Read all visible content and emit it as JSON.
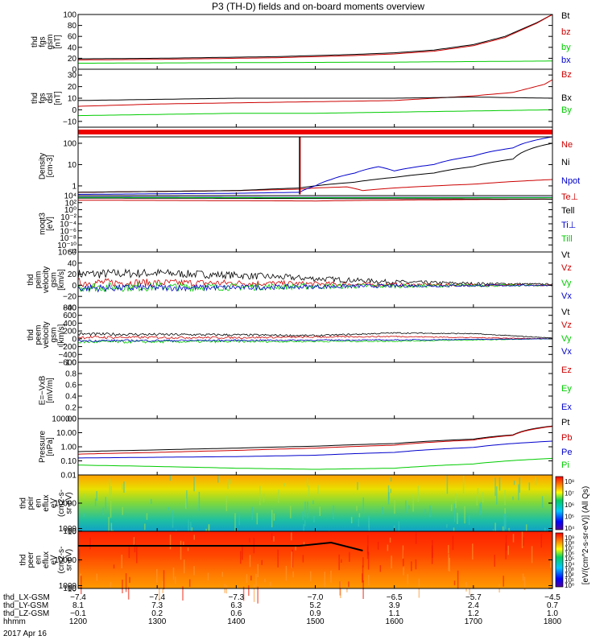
{
  "title": "P3 (TH-D) fields and on-board moments overview",
  "date_label": "2017 Apr 16",
  "chart_data": [
    {
      "id": "fgs-gsm",
      "type": "line",
      "ylabel": [
        "thd",
        "fgs",
        "gsm",
        "[nT]"
      ],
      "ylim": [
        0,
        100
      ],
      "yticks": [
        "100",
        "80",
        "60",
        "40",
        "20",
        "0"
      ],
      "ytick_values": [
        100,
        80,
        60,
        40,
        20,
        0
      ],
      "series": [
        {
          "name": "Bt",
          "color": "#000000",
          "x": [
            1200,
            1300,
            1400,
            1450,
            1500,
            1550,
            1600,
            1650,
            1700,
            1740,
            1780,
            1800
          ],
          "y": [
            19,
            20,
            22,
            23,
            25,
            27,
            30,
            35,
            45,
            60,
            85,
            100
          ]
        },
        {
          "name": "bz",
          "color": "#cc0000",
          "x": [
            1200,
            1300,
            1400,
            1450,
            1500,
            1550,
            1600,
            1650,
            1700,
            1740,
            1780,
            1800
          ],
          "y": [
            17,
            18,
            20,
            21,
            23,
            25,
            28,
            33,
            43,
            58,
            84,
            100
          ]
        },
        {
          "name": "by",
          "color": "#00cc00",
          "x": [
            1200,
            1400,
            1600,
            1700,
            1800
          ],
          "y": [
            11,
            12,
            13,
            14,
            15
          ]
        },
        {
          "name": "bx",
          "color": "#0000cc",
          "x": [
            1200,
            1400,
            1600,
            1700,
            1800
          ],
          "y": [
            0,
            0,
            0,
            -1,
            -2
          ]
        }
      ]
    },
    {
      "id": "fgs-dsl",
      "type": "line",
      "ylabel": [
        "thd",
        "fgs",
        "dsl",
        "[nT]"
      ],
      "ylim": [
        -15,
        35
      ],
      "yticks": [
        "30",
        "20",
        "10",
        "0",
        "−10"
      ],
      "ytick_values": [
        30,
        20,
        10,
        0,
        -10
      ],
      "series": [
        {
          "name": "Bz",
          "color": "#cc0000",
          "x": [
            1200,
            1300,
            1400,
            1500,
            1600,
            1650,
            1700,
            1750,
            1790,
            1800
          ],
          "y": [
            3,
            5,
            6,
            7,
            8,
            10,
            12,
            15,
            22,
            26
          ]
        },
        {
          "name": "Bx",
          "color": "#000000",
          "x": [
            1200,
            1300,
            1400,
            1500,
            1600,
            1700,
            1800
          ],
          "y": [
            8,
            9,
            10,
            10,
            10,
            11,
            10
          ]
        },
        {
          "name": "By",
          "color": "#00cc00",
          "x": [
            1200,
            1300,
            1400,
            1500,
            1600,
            1700,
            1800
          ],
          "y": [
            -5,
            -4,
            -3,
            -3,
            -2,
            -1,
            0
          ]
        }
      ]
    },
    {
      "id": "flag-bar",
      "type": "bar",
      "color": "#ee0000"
    },
    {
      "id": "density",
      "type": "line",
      "scale": "log",
      "ylabel": [
        "Density",
        "[cm-3]"
      ],
      "ylim": [
        0.35,
        200
      ],
      "yticks": [
        "100",
        "10",
        "1"
      ],
      "ytick_values": [
        100,
        10,
        1
      ],
      "series": [
        {
          "name": "Ne",
          "color": "#cc0000",
          "x": [
            1200,
            1300,
            1400,
            1480,
            1500,
            1540,
            1560,
            1600,
            1700,
            1800
          ],
          "y": [
            0.5,
            0.55,
            0.6,
            0.7,
            0.8,
            0.9,
            0.6,
            0.8,
            1.2,
            2
          ]
        },
        {
          "name": "Ni",
          "color": "#000000",
          "x": [
            1200,
            1300,
            1400,
            1480,
            1500,
            1550,
            1600,
            1650,
            1700,
            1750,
            1800
          ],
          "y": [
            0.5,
            0.55,
            0.6,
            0.8,
            1.0,
            1.5,
            2.5,
            4,
            8,
            18,
            100
          ]
        },
        {
          "name": "Npot",
          "color": "#0000cc",
          "x": [
            1200,
            1400,
            1480,
            1500,
            1520,
            1550,
            1580,
            1600,
            1650,
            1700,
            1750,
            1800
          ],
          "y": [
            0.4,
            0.45,
            0.5,
            1.0,
            2,
            4,
            8,
            5,
            10,
            25,
            60,
            200
          ]
        }
      ],
      "spike": {
        "x": 1480,
        "y_from": 0.4,
        "y_to": 200
      }
    },
    {
      "id": "temperature",
      "type": "line",
      "scale": "log",
      "ylabel": [
        "moqt3",
        "[eV]"
      ],
      "ylim": [
        1e-12,
        10000.0
      ],
      "yticks": [
        "10⁴",
        "10²",
        "10⁰",
        "10⁻²",
        "10⁻⁴",
        "10⁻⁶",
        "10⁻⁸",
        "10⁻¹⁰",
        "10⁻¹²"
      ],
      "ytick_values": [
        10000.0,
        100.0,
        1,
        0.01,
        0.0001,
        1e-06,
        1e-08,
        1e-10,
        1e-12
      ],
      "series": [
        {
          "name": "Te⊥",
          "color": "#cc0000",
          "x": [
            1200,
            1500,
            1800
          ],
          "y": [
            500,
            300,
            1000
          ]
        },
        {
          "name": "Tell",
          "color": "#000000",
          "x": [
            1200,
            1500,
            1800
          ],
          "y": [
            2000,
            1500,
            1000
          ]
        },
        {
          "name": "Ti⊥",
          "color": "#0000cc",
          "x": [
            1200,
            1500,
            1800
          ],
          "y": [
            4000,
            3000,
            3000
          ]
        },
        {
          "name": "Till",
          "color": "#00cc00",
          "x": [
            1200,
            1500,
            1800
          ],
          "y": [
            3000,
            2500,
            2500
          ]
        }
      ]
    },
    {
      "id": "peim-velocity",
      "type": "line",
      "ylabel": [
        "thd",
        "peim",
        "velocity",
        "gsm",
        "[km/s]"
      ],
      "ylim": [
        -40,
        60
      ],
      "yticks": [
        "60",
        "40",
        "20",
        "0",
        "−20",
        "−40"
      ],
      "ytick_values": [
        60,
        40,
        20,
        0,
        -20,
        -40
      ],
      "series": [
        {
          "name": "Vt",
          "color": "#000000",
          "x": [
            1200,
            1300,
            1400,
            1500,
            1600,
            1700,
            1800
          ],
          "y": [
            20,
            22,
            18,
            12,
            6,
            3,
            2
          ],
          "noise": 9
        },
        {
          "name": "Vz",
          "color": "#cc0000",
          "x": [
            1200,
            1400,
            1600,
            1800
          ],
          "y": [
            5,
            4,
            1,
            0
          ],
          "noise": 8
        },
        {
          "name": "Vy",
          "color": "#00cc00",
          "x": [
            1200,
            1400,
            1600,
            1800
          ],
          "y": [
            -3,
            -3,
            -1,
            0
          ],
          "noise": 9
        },
        {
          "name": "Vx",
          "color": "#0000cc",
          "x": [
            1200,
            1400,
            1600,
            1800
          ],
          "y": [
            -5,
            -4,
            -1,
            0
          ],
          "noise": 7
        }
      ]
    },
    {
      "id": "peem-velocity",
      "type": "line",
      "ylabel": [
        "thd",
        "peem",
        "velocity",
        "gsm",
        "[km/s]"
      ],
      "ylim": [
        -600,
        800
      ],
      "yticks": [
        "800",
        "600",
        "400",
        "200",
        "0",
        "−200",
        "−400",
        "−600"
      ],
      "ytick_values": [
        800,
        600,
        400,
        200,
        0,
        -200,
        -400,
        -600
      ],
      "series": [
        {
          "name": "Vt",
          "color": "#000000",
          "x": [
            1200,
            1300,
            1400,
            1500,
            1600,
            1700,
            1800
          ],
          "y": [
            120,
            110,
            100,
            80,
            150,
            130,
            20
          ],
          "noise": 40
        },
        {
          "name": "Vz",
          "color": "#cc0000",
          "x": [
            1200,
            1400,
            1600,
            1800
          ],
          "y": [
            40,
            30,
            60,
            0
          ],
          "noise": 35
        },
        {
          "name": "Vy",
          "color": "#00cc00",
          "x": [
            1200,
            1400,
            1600,
            1800
          ],
          "y": [
            -80,
            -70,
            -60,
            0
          ],
          "noise": 40
        },
        {
          "name": "Vx",
          "color": "#0000cc",
          "x": [
            1200,
            1400,
            1600,
            1800
          ],
          "y": [
            -50,
            -40,
            -30,
            0
          ],
          "noise": 30
        }
      ]
    },
    {
      "id": "efield",
      "type": "line",
      "ylabel": [
        "E=−VxB",
        "[mV/m]"
      ],
      "ylim": [
        0,
        1
      ],
      "yticks": [
        "1.0",
        "0.8",
        "0.6",
        "0.4",
        "0.2",
        "0.0"
      ],
      "ytick_values": [
        1.0,
        0.8,
        0.6,
        0.4,
        0.2,
        0.0
      ],
      "series": [
        {
          "name": "Ez",
          "color": "#cc0000"
        },
        {
          "name": "Ey",
          "color": "#00cc00"
        },
        {
          "name": "Ex",
          "color": "#0000cc"
        }
      ]
    },
    {
      "id": "pressure",
      "type": "line",
      "scale": "log",
      "ylabel": [
        "Pressure",
        "[nPa]"
      ],
      "ylim": [
        0.01,
        100
      ],
      "yticks": [
        "100.00",
        "10.00",
        "1.00",
        "0.10",
        "0.01"
      ],
      "ytick_values": [
        100,
        10,
        1,
        0.1,
        0.01
      ],
      "series": [
        {
          "name": "Pt",
          "color": "#000000",
          "x": [
            1200,
            1300,
            1400,
            1500,
            1600,
            1700,
            1750,
            1800
          ],
          "y": [
            0.45,
            0.6,
            0.8,
            1.1,
            1.7,
            3.5,
            7,
            30
          ]
        },
        {
          "name": "Pb",
          "color": "#cc0000",
          "x": [
            1200,
            1300,
            1400,
            1500,
            1600,
            1700,
            1750,
            1800
          ],
          "y": [
            0.3,
            0.4,
            0.55,
            0.8,
            1.3,
            3.0,
            6.5,
            28
          ]
        },
        {
          "name": "Pe",
          "color": "#0000cc",
          "x": [
            1200,
            1300,
            1400,
            1500,
            1600,
            1700,
            1800
          ],
          "y": [
            0.16,
            0.18,
            0.2,
            0.25,
            0.4,
            0.9,
            2.5
          ]
        },
        {
          "name": "Pi",
          "color": "#00cc00",
          "x": [
            1200,
            1300,
            1400,
            1500,
            1600,
            1700,
            1800
          ],
          "y": [
            0.05,
            0.04,
            0.03,
            0.025,
            0.03,
            0.06,
            0.15
          ]
        }
      ]
    },
    {
      "id": "peir-spectrogram",
      "type": "heatmap",
      "ylabel": [
        "thd",
        "peir",
        "en",
        "eflux",
        "eV",
        "(cm2-s-",
        "sr-eV)"
      ],
      "ylim": [
        5,
        20000
      ],
      "yticks": [
        "10000",
        "1000",
        "100",
        "10"
      ],
      "ytick_values": [
        10000,
        1000,
        100,
        10
      ],
      "colorbar_ticks": [
        "10⁸",
        "10⁷",
        "10⁶",
        "10⁵",
        "10⁴"
      ]
    },
    {
      "id": "peer-spectrogram",
      "type": "heatmap",
      "ylabel": [
        "thd",
        "peer",
        "en",
        "eflux",
        "eV",
        "(cm2-s-",
        "sr-eV)"
      ],
      "ylim": [
        5,
        20000
      ],
      "yticks": [
        "10000",
        "1000",
        "100",
        "10"
      ],
      "ytick_values": [
        10000,
        1000,
        100,
        10
      ],
      "colorbar_ticks": [
        "10⁹",
        "10⁸",
        "10⁷",
        "10⁶",
        "10⁵",
        "10⁴",
        "10³",
        "10²",
        "10¹",
        "10⁰"
      ]
    }
  ],
  "colorbar_label": "[eV/(cm^2-s-sr-eV)] (All Qs)",
  "x_axis": {
    "range": [
      1200,
      1800
    ],
    "ticks": [
      1200,
      1300,
      1400,
      1500,
      1600,
      1700,
      1800
    ],
    "rows": [
      {
        "label": "thd_LX-GSM",
        "values": [
          "−7.4",
          "−7.4",
          "−7.3",
          "−7.0",
          "−6.5",
          "−5.7",
          "−4.5"
        ]
      },
      {
        "label": "thd_LY-GSM",
        "values": [
          "8.1",
          "7.3",
          "6.3",
          "5.2",
          "3.9",
          "2.4",
          "0.7"
        ]
      },
      {
        "label": "thd_LZ-GSM",
        "values": [
          "−0.1",
          "0.2",
          "0.6",
          "0.9",
          "1.1",
          "1.2",
          "1.0"
        ]
      },
      {
        "label": "hhmm",
        "values": [
          "1200",
          "1300",
          "1400",
          "1500",
          "1600",
          "1700",
          "1800"
        ]
      }
    ]
  }
}
